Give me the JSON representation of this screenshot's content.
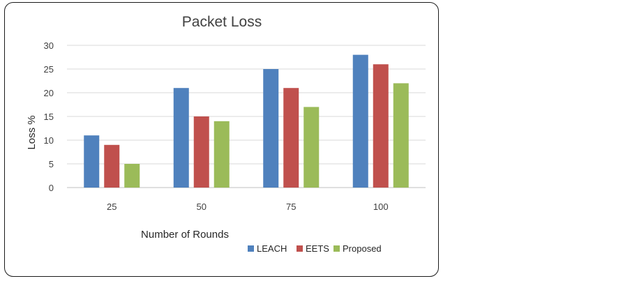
{
  "chart_data": {
    "type": "bar",
    "title": "Packet Loss",
    "xlabel": "Number of Rounds",
    "ylabel": "Loss %",
    "categories": [
      "25",
      "50",
      "75",
      "100"
    ],
    "series": [
      {
        "name": "LEACH",
        "values": [
          11,
          21,
          25,
          28
        ],
        "color": "#4f81bd"
      },
      {
        "name": "EETS",
        "values": [
          9,
          15,
          21,
          26
        ],
        "color": "#c0504d"
      },
      {
        "name": "Proposed",
        "values": [
          5,
          14,
          17,
          22
        ],
        "color": "#9bbb59"
      }
    ],
    "ylim": [
      0,
      30
    ],
    "yticks": [
      "0",
      "5",
      "10",
      "15",
      "20",
      "25",
      "30"
    ],
    "grid": true,
    "legend_position": "bottom-right"
  }
}
